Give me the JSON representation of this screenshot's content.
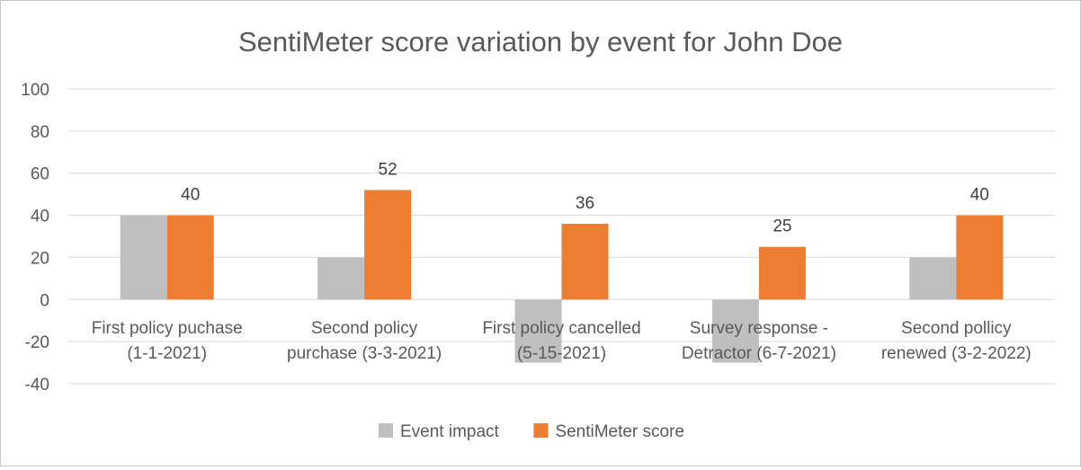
{
  "chart_data": {
    "type": "bar",
    "title": "SentiMeter score variation by event for John Doe",
    "xlabel": "",
    "ylabel": "",
    "ylim": [
      -40,
      100
    ],
    "yticks": [
      "100",
      "80",
      "60",
      "40",
      "20",
      "0",
      "-20",
      "-40"
    ],
    "ytick_values": [
      100,
      80,
      60,
      40,
      20,
      0,
      -20,
      -40
    ],
    "grid": true,
    "legend_position": "bottom",
    "categories": [
      [
        "First policy puchase",
        "(1-1-2021)"
      ],
      [
        "Second policy",
        "purchase  (3-3-2021)"
      ],
      [
        "First policy cancelled",
        "(5-15-2021)"
      ],
      [
        "Survey response -",
        "Detractor (6-7-2021)"
      ],
      [
        "Second pollicy",
        "renewed (3-2-2022)"
      ]
    ],
    "series": [
      {
        "name": "Event impact",
        "color": "#bfbfbf",
        "values": [
          40,
          20,
          -30,
          -30,
          20
        ],
        "data_labels": [
          "",
          "",
          "",
          "",
          ""
        ]
      },
      {
        "name": "SentiMeter score",
        "color": "#ed7d31",
        "values": [
          40,
          52,
          36,
          25,
          40
        ],
        "data_labels": [
          "40",
          "52",
          "36",
          "25",
          "40"
        ]
      }
    ]
  }
}
